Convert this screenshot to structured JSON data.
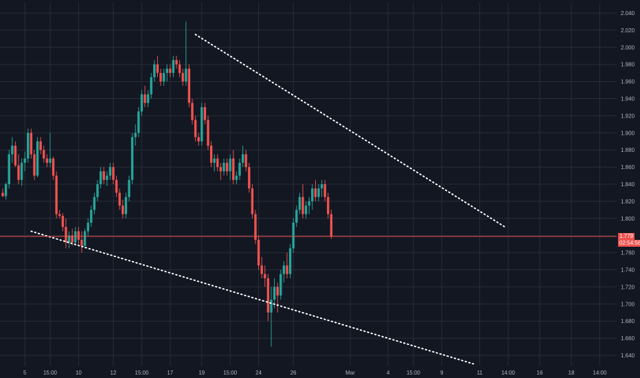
{
  "colors": {
    "background": "#131722",
    "grid": "#2a2e39",
    "up": "#26a69a",
    "down": "#ef5350",
    "trendline": "#ffffff",
    "price_line": "#ef5350",
    "axis_text": "#b2b5be"
  },
  "last_price_label": "1.779",
  "countdown_label": "02:54:56",
  "chart_data": {
    "type": "candlestick",
    "ylim": [
      1.63,
      2.04
    ],
    "y_ticks": [
      "1.640",
      "1.660",
      "1.680",
      "1.700",
      "1.720",
      "1.740",
      "1.760",
      "1.780",
      "1.800",
      "1.820",
      "1.840",
      "1.860",
      "1.880",
      "1.900",
      "1.920",
      "1.940",
      "1.960",
      "1.980",
      "2.000",
      "2.020",
      "2.040"
    ],
    "y_tick_values": [
      1.64,
      1.66,
      1.68,
      1.7,
      1.72,
      1.74,
      1.76,
      1.78,
      1.8,
      1.82,
      1.84,
      1.86,
      1.88,
      1.9,
      1.92,
      1.94,
      1.96,
      1.98,
      2.0,
      2.02,
      2.04
    ],
    "x_range": [
      0,
      180
    ],
    "x_ticks": [
      {
        "label": "5",
        "x": 7
      },
      {
        "label": "15:00",
        "x": 15
      },
      {
        "label": "10",
        "x": 24
      },
      {
        "label": "12",
        "x": 35
      },
      {
        "label": "15:00",
        "x": 44
      },
      {
        "label": "17",
        "x": 53
      },
      {
        "label": "19",
        "x": 63
      },
      {
        "label": "15:00",
        "x": 72
      },
      {
        "label": "24",
        "x": 81
      },
      {
        "label": "26",
        "x": 92
      },
      {
        "label": "Mar",
        "x": 110
      },
      {
        "label": "4",
        "x": 122
      },
      {
        "label": "15:00",
        "x": 130
      },
      {
        "label": "9",
        "x": 139
      },
      {
        "label": "11",
        "x": 151
      },
      {
        "label": "14:00",
        "x": 160
      },
      {
        "label": "16",
        "x": 170
      },
      {
        "label": "18",
        "x": 180
      },
      {
        "label": "14:00",
        "x": 189
      }
    ],
    "last_price": 1.779,
    "candles": [
      [
        1.83,
        1.835,
        1.825,
        1.826
      ],
      [
        1.826,
        1.842,
        1.822,
        1.84
      ],
      [
        1.84,
        1.88,
        1.835,
        1.875
      ],
      [
        1.875,
        1.895,
        1.865,
        1.885
      ],
      [
        1.885,
        1.89,
        1.86,
        1.862
      ],
      [
        1.862,
        1.875,
        1.84,
        1.845
      ],
      [
        1.845,
        1.87,
        1.838,
        1.865
      ],
      [
        1.865,
        1.878,
        1.855,
        1.87
      ],
      [
        1.87,
        1.905,
        1.865,
        1.9
      ],
      [
        1.9,
        1.905,
        1.87,
        1.875
      ],
      [
        1.875,
        1.88,
        1.845,
        1.85
      ],
      [
        1.85,
        1.895,
        1.848,
        1.89
      ],
      [
        1.89,
        1.895,
        1.875,
        1.88
      ],
      [
        1.88,
        1.885,
        1.865,
        1.87
      ],
      [
        1.87,
        1.875,
        1.86,
        1.865
      ],
      [
        1.865,
        1.9,
        1.86,
        1.87
      ],
      [
        1.87,
        1.872,
        1.845,
        1.85
      ],
      [
        1.85,
        1.855,
        1.8,
        1.805
      ],
      [
        1.805,
        1.81,
        1.8,
        1.803
      ],
      [
        1.803,
        1.806,
        1.785,
        1.79
      ],
      [
        1.79,
        1.8,
        1.765,
        1.772
      ],
      [
        1.772,
        1.785,
        1.765,
        1.78
      ],
      [
        1.78,
        1.788,
        1.768,
        1.772
      ],
      [
        1.772,
        1.79,
        1.768,
        1.785
      ],
      [
        1.785,
        1.79,
        1.77,
        1.775
      ],
      [
        1.775,
        1.785,
        1.76,
        1.768
      ],
      [
        1.768,
        1.788,
        1.765,
        1.785
      ],
      [
        1.785,
        1.8,
        1.78,
        1.795
      ],
      [
        1.795,
        1.815,
        1.79,
        1.81
      ],
      [
        1.81,
        1.83,
        1.805,
        1.825
      ],
      [
        1.825,
        1.845,
        1.82,
        1.84
      ],
      [
        1.84,
        1.86,
        1.835,
        1.855
      ],
      [
        1.855,
        1.86,
        1.84,
        1.845
      ],
      [
        1.845,
        1.855,
        1.838,
        1.85
      ],
      [
        1.85,
        1.865,
        1.845,
        1.86
      ],
      [
        1.86,
        1.865,
        1.84,
        1.845
      ],
      [
        1.845,
        1.85,
        1.825,
        1.83
      ],
      [
        1.83,
        1.835,
        1.81,
        1.815
      ],
      [
        1.815,
        1.822,
        1.8,
        1.805
      ],
      [
        1.805,
        1.83,
        1.8,
        1.825
      ],
      [
        1.825,
        1.85,
        1.82,
        1.845
      ],
      [
        1.845,
        1.9,
        1.84,
        1.895
      ],
      [
        1.895,
        1.91,
        1.885,
        1.9
      ],
      [
        1.9,
        1.93,
        1.895,
        1.925
      ],
      [
        1.925,
        1.95,
        1.92,
        1.945
      ],
      [
        1.945,
        1.955,
        1.93,
        1.935
      ],
      [
        1.935,
        1.95,
        1.93,
        1.945
      ],
      [
        1.945,
        1.97,
        1.94,
        1.965
      ],
      [
        1.965,
        1.985,
        1.96,
        1.98
      ],
      [
        1.98,
        1.99,
        1.965,
        1.97
      ],
      [
        1.97,
        1.975,
        1.955,
        1.96
      ],
      [
        1.96,
        1.975,
        1.955,
        1.97
      ],
      [
        1.97,
        1.98,
        1.96,
        1.975
      ],
      [
        1.975,
        1.98,
        1.965,
        1.97
      ],
      [
        1.97,
        1.99,
        1.965,
        1.985
      ],
      [
        1.985,
        1.99,
        1.975,
        1.98
      ],
      [
        1.98,
        1.985,
        1.965,
        1.97
      ],
      [
        1.97,
        1.975,
        1.955,
        1.96
      ],
      [
        1.96,
        2.03,
        1.955,
        1.975
      ],
      [
        1.975,
        1.98,
        1.93,
        1.935
      ],
      [
        1.935,
        1.94,
        1.91,
        1.915
      ],
      [
        1.915,
        1.92,
        1.89,
        1.895
      ],
      [
        1.895,
        1.9,
        1.885,
        1.89
      ],
      [
        1.89,
        1.935,
        1.885,
        1.93
      ],
      [
        1.93,
        1.935,
        1.91,
        1.915
      ],
      [
        1.915,
        1.92,
        1.88,
        1.885
      ],
      [
        1.885,
        1.89,
        1.86,
        1.865
      ],
      [
        1.865,
        1.875,
        1.855,
        1.87
      ],
      [
        1.87,
        1.875,
        1.855,
        1.86
      ],
      [
        1.86,
        1.865,
        1.845,
        1.855
      ],
      [
        1.855,
        1.87,
        1.85,
        1.865
      ],
      [
        1.865,
        1.87,
        1.85,
        1.855
      ],
      [
        1.855,
        1.875,
        1.845,
        1.87
      ],
      [
        1.87,
        1.88,
        1.84,
        1.845
      ],
      [
        1.845,
        1.855,
        1.84,
        1.85
      ],
      [
        1.85,
        1.87,
        1.845,
        1.865
      ],
      [
        1.865,
        1.885,
        1.86,
        1.875
      ],
      [
        1.875,
        1.88,
        1.855,
        1.86
      ],
      [
        1.86,
        1.865,
        1.83,
        1.835
      ],
      [
        1.835,
        1.84,
        1.8,
        1.805
      ],
      [
        1.805,
        1.81,
        1.77,
        1.775
      ],
      [
        1.775,
        1.78,
        1.74,
        1.745
      ],
      [
        1.745,
        1.755,
        1.73,
        1.735
      ],
      [
        1.735,
        1.745,
        1.72,
        1.73
      ],
      [
        1.73,
        1.735,
        1.68,
        1.69
      ],
      [
        1.69,
        1.72,
        1.65,
        1.705
      ],
      [
        1.705,
        1.73,
        1.695,
        1.72
      ],
      [
        1.72,
        1.725,
        1.69,
        1.71
      ],
      [
        1.71,
        1.74,
        1.705,
        1.735
      ],
      [
        1.735,
        1.75,
        1.725,
        1.745
      ],
      [
        1.745,
        1.76,
        1.73,
        1.735
      ],
      [
        1.735,
        1.77,
        1.73,
        1.765
      ],
      [
        1.765,
        1.8,
        1.76,
        1.795
      ],
      [
        1.795,
        1.815,
        1.79,
        1.81
      ],
      [
        1.81,
        1.83,
        1.805,
        1.825
      ],
      [
        1.825,
        1.84,
        1.8,
        1.805
      ],
      [
        1.805,
        1.82,
        1.8,
        1.815
      ],
      [
        1.815,
        1.825,
        1.805,
        1.82
      ],
      [
        1.82,
        1.84,
        1.81,
        1.835
      ],
      [
        1.835,
        1.845,
        1.82,
        1.825
      ],
      [
        1.825,
        1.84,
        1.82,
        1.835
      ],
      [
        1.835,
        1.845,
        1.825,
        1.84
      ],
      [
        1.84,
        1.845,
        1.82,
        1.825
      ],
      [
        1.825,
        1.83,
        1.8,
        1.805
      ],
      [
        1.805,
        1.81,
        1.776,
        1.779
      ]
    ],
    "trendlines": [
      {
        "name": "upper",
        "x1": 61,
        "y1": 2.015,
        "x2": 159,
        "y2": 1.79
      },
      {
        "name": "lower",
        "x1": 9,
        "y1": 1.785,
        "x2": 149,
        "y2": 1.63
      }
    ]
  }
}
